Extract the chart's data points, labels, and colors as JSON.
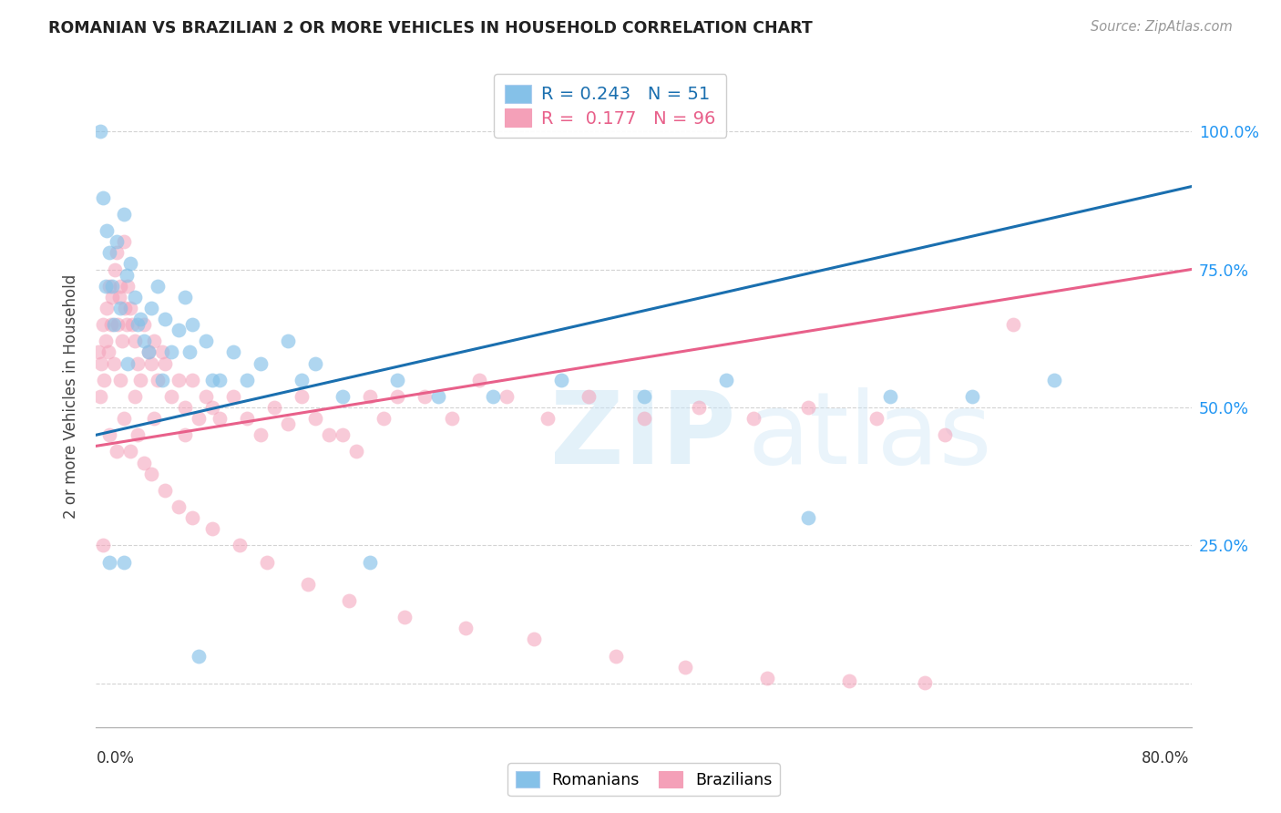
{
  "title": "ROMANIAN VS BRAZILIAN 2 OR MORE VEHICLES IN HOUSEHOLD CORRELATION CHART",
  "source": "Source: ZipAtlas.com",
  "ylabel": "2 or more Vehicles in Household",
  "xlim": [
    0.0,
    80.0
  ],
  "ylim": [
    -8.0,
    112.0
  ],
  "yticks": [
    0.0,
    25.0,
    50.0,
    75.0,
    100.0
  ],
  "legend_r_romanian": "R = 0.243",
  "legend_n_romanian": "N = 51",
  "legend_r_brazilian": "R = 0.177",
  "legend_n_brazilian": "N = 96",
  "romanian_color": "#85c1e8",
  "brazilian_color": "#f4a0b8",
  "romanian_line_color": "#1a6faf",
  "brazilian_line_color": "#e8608a",
  "rom_x": [
    0.3,
    0.5,
    0.8,
    1.0,
    1.2,
    1.5,
    1.8,
    2.0,
    2.2,
    2.5,
    2.8,
    3.0,
    3.5,
    4.0,
    4.5,
    5.0,
    5.5,
    6.0,
    6.5,
    7.0,
    8.0,
    9.0,
    10.0,
    12.0,
    14.0,
    15.0,
    3.2,
    3.8,
    2.3,
    1.3,
    0.7,
    4.8,
    6.8,
    8.5,
    11.0,
    18.0,
    22.0,
    25.0,
    29.0,
    34.0,
    40.0,
    46.0,
    52.0,
    58.0,
    64.0,
    70.0,
    16.0,
    20.0,
    1.0,
    2.0,
    7.5
  ],
  "rom_y": [
    100.0,
    88.0,
    82.0,
    78.0,
    72.0,
    80.0,
    68.0,
    85.0,
    74.0,
    76.0,
    70.0,
    65.0,
    62.0,
    68.0,
    72.0,
    66.0,
    60.0,
    64.0,
    70.0,
    65.0,
    62.0,
    55.0,
    60.0,
    58.0,
    62.0,
    55.0,
    66.0,
    60.0,
    58.0,
    65.0,
    72.0,
    55.0,
    60.0,
    55.0,
    55.0,
    52.0,
    55.0,
    52.0,
    52.0,
    55.0,
    52.0,
    55.0,
    30.0,
    52.0,
    52.0,
    55.0,
    58.0,
    22.0,
    22.0,
    22.0,
    5.0
  ],
  "bra_x": [
    0.2,
    0.3,
    0.4,
    0.5,
    0.6,
    0.7,
    0.8,
    0.9,
    1.0,
    1.1,
    1.2,
    1.3,
    1.4,
    1.5,
    1.6,
    1.7,
    1.8,
    1.9,
    2.0,
    2.1,
    2.2,
    2.3,
    2.5,
    2.6,
    2.8,
    3.0,
    3.2,
    3.5,
    3.8,
    4.0,
    4.2,
    4.5,
    4.8,
    5.0,
    5.5,
    6.0,
    6.5,
    7.0,
    7.5,
    8.0,
    8.5,
    9.0,
    10.0,
    11.0,
    12.0,
    13.0,
    14.0,
    15.0,
    16.0,
    17.0,
    18.0,
    19.0,
    20.0,
    21.0,
    22.0,
    24.0,
    26.0,
    28.0,
    30.0,
    33.0,
    36.0,
    40.0,
    44.0,
    48.0,
    52.0,
    57.0,
    62.0,
    67.0,
    0.5,
    1.0,
    1.5,
    2.0,
    2.5,
    3.0,
    3.5,
    4.0,
    5.0,
    6.0,
    7.0,
    8.5,
    10.5,
    12.5,
    15.5,
    18.5,
    22.5,
    27.0,
    32.0,
    38.0,
    43.0,
    49.0,
    55.0,
    60.5,
    1.8,
    2.8,
    4.2,
    6.5
  ],
  "bra_y": [
    60.0,
    52.0,
    58.0,
    65.0,
    55.0,
    62.0,
    68.0,
    60.0,
    72.0,
    65.0,
    70.0,
    58.0,
    75.0,
    78.0,
    65.0,
    70.0,
    72.0,
    62.0,
    80.0,
    68.0,
    65.0,
    72.0,
    68.0,
    65.0,
    62.0,
    58.0,
    55.0,
    65.0,
    60.0,
    58.0,
    62.0,
    55.0,
    60.0,
    58.0,
    52.0,
    55.0,
    50.0,
    55.0,
    48.0,
    52.0,
    50.0,
    48.0,
    52.0,
    48.0,
    45.0,
    50.0,
    47.0,
    52.0,
    48.0,
    45.0,
    45.0,
    42.0,
    52.0,
    48.0,
    52.0,
    52.0,
    48.0,
    55.0,
    52.0,
    48.0,
    52.0,
    48.0,
    50.0,
    48.0,
    50.0,
    48.0,
    45.0,
    65.0,
    25.0,
    45.0,
    42.0,
    48.0,
    42.0,
    45.0,
    40.0,
    38.0,
    35.0,
    32.0,
    30.0,
    28.0,
    25.0,
    22.0,
    18.0,
    15.0,
    12.0,
    10.0,
    8.0,
    5.0,
    3.0,
    1.0,
    0.5,
    0.2,
    55.0,
    52.0,
    48.0,
    45.0
  ]
}
